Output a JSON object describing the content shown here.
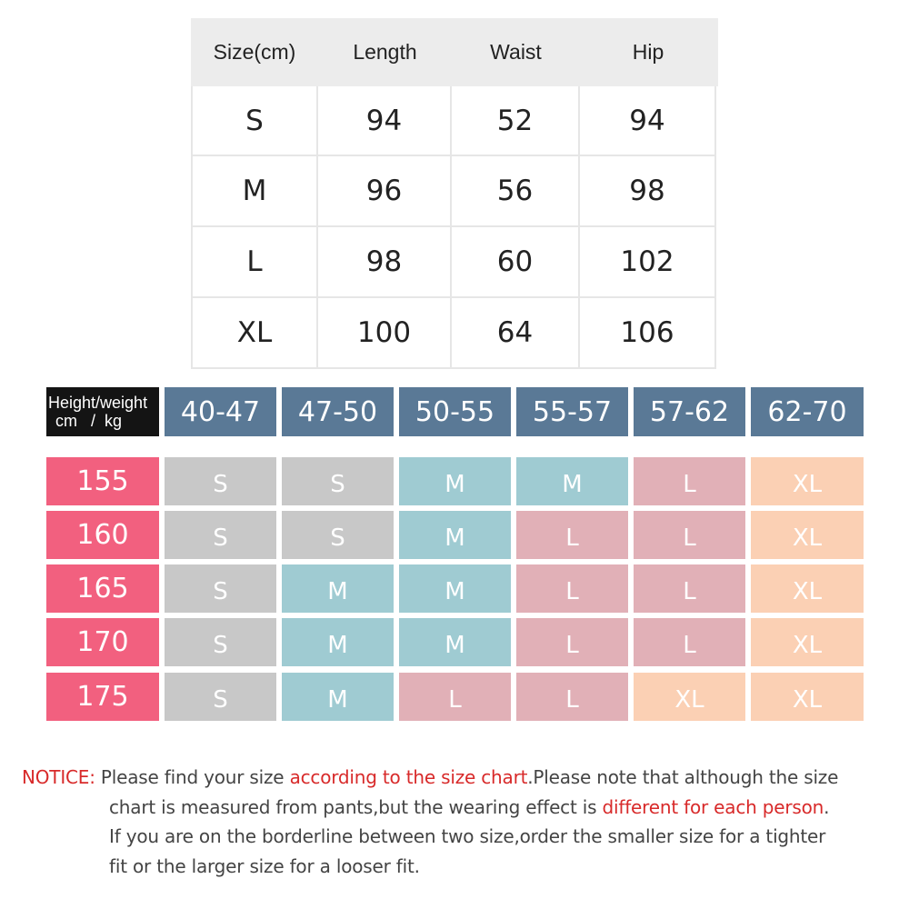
{
  "measurements": {
    "headers": [
      "Size(cm)",
      "Length",
      "Waist",
      "Hip"
    ],
    "rows": [
      [
        "S",
        "94",
        "52",
        "94"
      ],
      [
        "M",
        "96",
        "56",
        "98"
      ],
      [
        "L",
        "98",
        "60",
        "102"
      ],
      [
        "XL",
        "100",
        "64",
        "106"
      ]
    ]
  },
  "size_guide": {
    "corner_line1": "Height/weight",
    "corner_line2": "cm   /  kg",
    "weights": [
      "40-47",
      "47-50",
      "50-55",
      "55-57",
      "57-62",
      "62-70"
    ],
    "heights": [
      "155",
      "160",
      "165",
      "170",
      "175"
    ],
    "grid": [
      [
        "S",
        "S",
        "M",
        "M",
        "L",
        "XL"
      ],
      [
        "S",
        "S",
        "M",
        "L",
        "L",
        "XL"
      ],
      [
        "S",
        "M",
        "M",
        "L",
        "L",
        "XL"
      ],
      [
        "S",
        "M",
        "M",
        "L",
        "L",
        "XL"
      ],
      [
        "S",
        "M",
        "L",
        "L",
        "XL",
        "XL"
      ]
    ],
    "colors": {
      "header_weight": "#5a7996",
      "header_height": "#f2607f",
      "S": "#c8c8c8",
      "M": "#9fcbd2",
      "L": "#e1b0b7",
      "XL": "#fbd0b4"
    }
  },
  "notice": {
    "label": "NOTICE:",
    "line1_a": " Please find your size ",
    "line1_red": "according to the size chart",
    "line1_b": ".Please note that although the size",
    "line2_a": "chart is measured from pants,but the wearing effect is ",
    "line2_red": "different for each person",
    "line2_b": ".",
    "line3": "If you are on the borderline between two size,order the smaller size for a tighter",
    "line4": "fit or the larger size for a looser fit."
  }
}
